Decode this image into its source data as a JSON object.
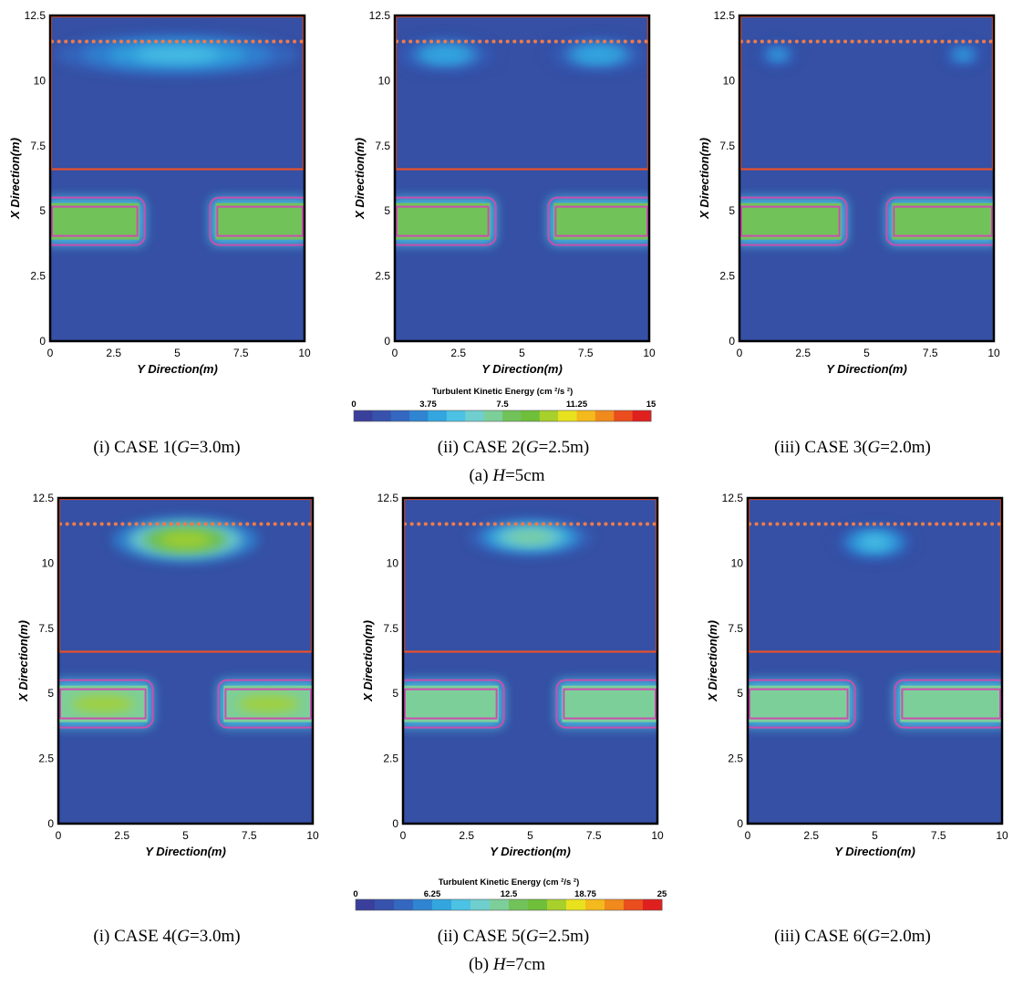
{
  "figure": {
    "groups": [
      {
        "label": "(a)",
        "h_label": "H",
        "h_value": "=5cm",
        "colorbar": {
          "title": "Turbulent Kinetic Energy  (cm ²/s ²)",
          "min": 0,
          "max": 15,
          "ticks": [
            "0",
            "3.75",
            "7.5",
            "11.25",
            "15"
          ]
        }
      },
      {
        "label": "(b)",
        "h_label": "H",
        "h_value": "=7cm",
        "colorbar": {
          "title": "Turbulent Kinetic Energy  (cm ²/s ²)",
          "min": 0,
          "max": 25,
          "ticks": [
            "0",
            "6.25",
            "12.5",
            "18.75",
            "25"
          ]
        }
      }
    ],
    "colors": {
      "background_field": "#3550a4",
      "structure_outline": "#e8502a",
      "block_outline": "#c94fb0",
      "water_line": "#f07a4a",
      "colormap": [
        "#3a3f9c",
        "#3652ad",
        "#3467c0",
        "#2f85d2",
        "#33a6df",
        "#4cc2e4",
        "#6fcfcf",
        "#7dcf9a",
        "#72c25a",
        "#6fbf3a",
        "#a8d02c",
        "#e8e21e",
        "#f4b91c",
        "#f08a1c",
        "#ea4d1e",
        "#e0201e"
      ]
    }
  },
  "chart_data": [
    {
      "type": "heatmap",
      "panel": "(i)",
      "case": "CASE 1(",
      "g": "G",
      "g_value": "=3.0m)",
      "group": "(a)",
      "xlabel": "Y Direction(m)",
      "ylabel": "X Direction(m)",
      "xlim": [
        0,
        10
      ],
      "ylim": [
        0,
        12.5
      ],
      "xticks": [
        "0",
        "2.5",
        "5",
        "7.5",
        "10"
      ],
      "yticks": [
        "0",
        "2.5",
        "5",
        "7.5",
        "10",
        "12.5"
      ],
      "structure_region": {
        "y": [
          0,
          10
        ],
        "x": [
          6.6,
          12.5
        ]
      },
      "water_line_x": 11.5,
      "blocks": [
        {
          "y": [
            0,
            3.5
          ],
          "x": [
            3.9,
            5.3
          ]
        },
        {
          "y": [
            6.5,
            10
          ],
          "x": [
            3.9,
            5.3
          ]
        }
      ],
      "gap": 3.0,
      "wave_height_cm": 5,
      "tke_max": 15,
      "hotspots": [
        {
          "y": 5,
          "x": 11.0,
          "sy": 3.0,
          "sx": 0.5,
          "tke": 5.5
        }
      ]
    },
    {
      "type": "heatmap",
      "panel": "(ii)",
      "case": "CASE 2(",
      "g": "G",
      "g_value": "=2.5m)",
      "group": "(a)",
      "xlabel": "Y Direction(m)",
      "ylabel": "X Direction(m)",
      "xlim": [
        0,
        10
      ],
      "ylim": [
        0,
        12.5
      ],
      "xticks": [
        "0",
        "2.5",
        "5",
        "7.5",
        "10"
      ],
      "yticks": [
        "0",
        "2.5",
        "5",
        "7.5",
        "10",
        "12.5"
      ],
      "structure_region": {
        "y": [
          0,
          10
        ],
        "x": [
          6.6,
          12.5
        ]
      },
      "water_line_x": 11.5,
      "blocks": [
        {
          "y": [
            0,
            3.75
          ],
          "x": [
            3.9,
            5.3
          ]
        },
        {
          "y": [
            6.25,
            10
          ],
          "x": [
            3.9,
            5.3
          ]
        }
      ],
      "gap": 2.5,
      "wave_height_cm": 5,
      "tke_max": 15,
      "hotspots": [
        {
          "y": 2.0,
          "x": 11.0,
          "sy": 1.3,
          "sx": 0.45,
          "tke": 4.5
        },
        {
          "y": 8.0,
          "x": 11.0,
          "sy": 1.3,
          "sx": 0.45,
          "tke": 4.5
        }
      ]
    },
    {
      "type": "heatmap",
      "panel": "(iii)",
      "case": "CASE 3(",
      "g": "G",
      "g_value": "=2.0m)",
      "group": "(a)",
      "xlabel": "Y Direction(m)",
      "ylabel": "X Direction(m)",
      "xlim": [
        0,
        10
      ],
      "ylim": [
        0,
        12.5
      ],
      "xticks": [
        "0",
        "2.5",
        "5",
        "7.5",
        "10"
      ],
      "yticks": [
        "0",
        "2.5",
        "5",
        "7.5",
        "10",
        "12.5"
      ],
      "structure_region": {
        "y": [
          0,
          10
        ],
        "x": [
          6.6,
          12.5
        ]
      },
      "water_line_x": 11.5,
      "blocks": [
        {
          "y": [
            0,
            4.0
          ],
          "x": [
            3.9,
            5.3
          ]
        },
        {
          "y": [
            6.0,
            10
          ],
          "x": [
            3.9,
            5.3
          ]
        }
      ],
      "gap": 2.0,
      "wave_height_cm": 5,
      "tke_max": 15,
      "hotspots": [
        {
          "y": 1.5,
          "x": 11.0,
          "sy": 0.5,
          "sx": 0.3,
          "tke": 3.8
        },
        {
          "y": 8.8,
          "x": 11.0,
          "sy": 0.5,
          "sx": 0.3,
          "tke": 3.8
        }
      ]
    },
    {
      "type": "heatmap",
      "panel": "(i)",
      "case": "CASE 4(",
      "g": "G",
      "g_value": "=3.0m)",
      "group": "(b)",
      "xlabel": "Y Direction(m)",
      "ylabel": "X Direction(m)",
      "xlim": [
        0,
        10
      ],
      "ylim": [
        0,
        12.5
      ],
      "xticks": [
        "0",
        "2.5",
        "5",
        "7.5",
        "10"
      ],
      "yticks": [
        "0",
        "2.5",
        "5",
        "7.5",
        "10",
        "12.5"
      ],
      "structure_region": {
        "y": [
          0,
          10
        ],
        "x": [
          6.6,
          12.5
        ]
      },
      "water_line_x": 11.5,
      "blocks": [
        {
          "y": [
            0,
            3.5
          ],
          "x": [
            3.9,
            5.3
          ]
        },
        {
          "y": [
            6.5,
            10
          ],
          "x": [
            3.9,
            5.3
          ]
        }
      ],
      "gap": 3.0,
      "wave_height_cm": 7,
      "tke_max": 25,
      "hotspots": [
        {
          "y": 5,
          "x": 10.9,
          "sy": 1.8,
          "sx": 0.55,
          "tke": 17
        }
      ]
    },
    {
      "type": "heatmap",
      "panel": "(ii)",
      "case": "CASE 5(",
      "g": "G",
      "g_value": "=2.5m)",
      "group": "(b)",
      "xlabel": "Y Direction(m)",
      "ylabel": "X Direction(m)",
      "xlim": [
        0,
        10
      ],
      "ylim": [
        0,
        12.5
      ],
      "xticks": [
        "0",
        "2.5",
        "5",
        "7.5",
        "10"
      ],
      "yticks": [
        "0",
        "2.5",
        "5",
        "7.5",
        "10",
        "12.5"
      ],
      "structure_region": {
        "y": [
          0,
          10
        ],
        "x": [
          6.6,
          12.5
        ]
      },
      "water_line_x": 11.5,
      "blocks": [
        {
          "y": [
            0,
            3.75
          ],
          "x": [
            3.9,
            5.3
          ]
        },
        {
          "y": [
            6.25,
            10
          ],
          "x": [
            3.9,
            5.3
          ]
        }
      ],
      "gap": 2.5,
      "wave_height_cm": 7,
      "tke_max": 25,
      "hotspots": [
        {
          "y": 5,
          "x": 11.0,
          "sy": 1.5,
          "sx": 0.45,
          "tke": 12
        }
      ]
    },
    {
      "type": "heatmap",
      "panel": "(iii)",
      "case": "CASE 6(",
      "g": "G",
      "g_value": "=2.0m)",
      "group": "(b)",
      "xlabel": "Y Direction(m)",
      "ylabel": "X Direction(m)",
      "xlim": [
        0,
        10
      ],
      "ylim": [
        0,
        12.5
      ],
      "xticks": [
        "0",
        "2.5",
        "5",
        "7.5",
        "10"
      ],
      "yticks": [
        "0",
        "2.5",
        "5",
        "7.5",
        "10",
        "12.5"
      ],
      "structure_region": {
        "y": [
          0,
          10
        ],
        "x": [
          6.6,
          12.5
        ]
      },
      "water_line_x": 11.5,
      "blocks": [
        {
          "y": [
            0,
            4.0
          ],
          "x": [
            3.9,
            5.3
          ]
        },
        {
          "y": [
            6.0,
            10
          ],
          "x": [
            3.9,
            5.3
          ]
        }
      ],
      "gap": 2.0,
      "wave_height_cm": 7,
      "tke_max": 25,
      "hotspots": [
        {
          "y": 5,
          "x": 10.8,
          "sy": 1.0,
          "sx": 0.45,
          "tke": 8.5
        }
      ]
    }
  ]
}
